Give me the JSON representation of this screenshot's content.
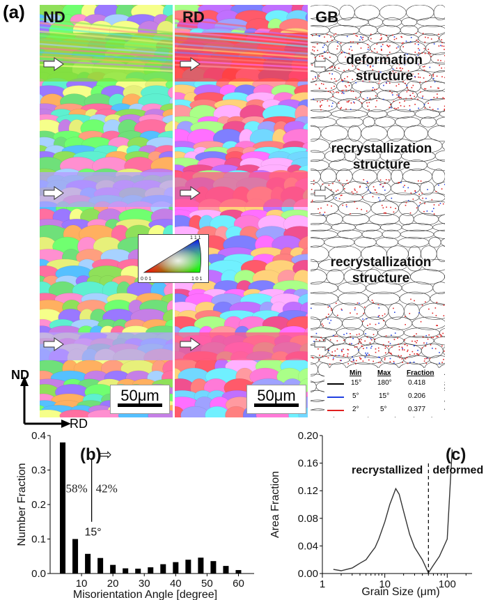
{
  "figure": {
    "panel_labels": {
      "a": "(a)",
      "b": "(b)",
      "c": "(c)"
    },
    "maps": [
      {
        "title": "ND",
        "colors": [
          "#8fe05a",
          "#6fe07a",
          "#c57fe6",
          "#ff9f7f",
          "#a7d2ff",
          "#f6ff8a",
          "#5ef0d0",
          "#ff6fa0",
          "#9a78ff",
          "#e7f07a",
          "#55c0ff",
          "#ff8fd0",
          "#70ff70",
          "#ffb060"
        ]
      },
      {
        "title": "RD",
        "colors": [
          "#ff5a6a",
          "#f0508f",
          "#ff6fff",
          "#c070ff",
          "#9fa2ff",
          "#ff9aa0",
          "#72d8ff",
          "#ffd27a",
          "#aaff88",
          "#ff7ad8",
          "#7f7fff",
          "#ffb0ff",
          "#70f0ff",
          "#ff8080"
        ]
      },
      {
        "title": "GB"
      }
    ],
    "scale_bars": [
      "50μm",
      "50μm"
    ],
    "gb_annotations": [
      "deformation",
      "structure",
      "recrystallization",
      "structure",
      "recrystallization",
      "structure"
    ],
    "ipf_key": {
      "corners": [
        "0 0 1",
        "1 0 1",
        "1 1 1"
      ]
    },
    "gb_legend": {
      "headers": [
        "Min",
        "Max",
        "Fraction"
      ],
      "rows": [
        {
          "min": "15°",
          "max": "180°",
          "fraction": "0.418",
          "color": "#000000"
        },
        {
          "min": "5°",
          "max": "15°",
          "fraction": "0.206",
          "color": "#1f3fe0"
        },
        {
          "min": "2°",
          "max": "5°",
          "fraction": "0.377",
          "color": "#e01f1f"
        }
      ]
    },
    "direction_axes": {
      "vertical": "ND",
      "horizontal": "RD"
    }
  },
  "chart_data": [
    {
      "type": "bar",
      "x": [
        4,
        8,
        12,
        16,
        20,
        24,
        28,
        32,
        36,
        40,
        44,
        48,
        52,
        56,
        60
      ],
      "values": [
        0.38,
        0.1,
        0.057,
        0.045,
        0.025,
        0.015,
        0.014,
        0.018,
        0.027,
        0.033,
        0.04,
        0.046,
        0.036,
        0.022,
        0.01
      ],
      "xlabel": "Misorientation Angle [degree]",
      "ylabel": "Number Fraction",
      "xlim": [
        0,
        65
      ],
      "ylim": [
        0,
        0.4
      ],
      "xticks": [
        10,
        20,
        30,
        40,
        50,
        60
      ],
      "yticks": [
        0.0,
        0.1,
        0.2,
        0.3,
        0.4
      ],
      "ytick_labels": [
        "0.0",
        "0.1",
        "0.2",
        "0.3",
        "0.4"
      ],
      "annotations": {
        "left_fraction": "58%",
        "right_fraction": "42%",
        "threshold": "15°",
        "arrow": "⇨"
      }
    },
    {
      "type": "line",
      "x": [
        1.5,
        2,
        3,
        4,
        5,
        6,
        7,
        8,
        10,
        12,
        15,
        17,
        20,
        25,
        30,
        40,
        50,
        60,
        75,
        100,
        120
      ],
      "values": [
        0.006,
        0.004,
        0.008,
        0.015,
        0.02,
        0.03,
        0.038,
        0.05,
        0.075,
        0.1,
        0.123,
        0.115,
        0.09,
        0.057,
        0.038,
        0.02,
        0.001,
        0.012,
        0.025,
        0.05,
        0.18
      ],
      "xlabel": "Grain Size (μm)",
      "ylabel": "Area Fraction",
      "xscale": "log",
      "xlim": [
        1,
        250
      ],
      "ylim": [
        0,
        0.2
      ],
      "xticks": [
        1,
        10,
        100
      ],
      "yticks": [
        0.0,
        0.04,
        0.08,
        0.12,
        0.16,
        0.2
      ],
      "ytick_labels": [
        "0.00",
        "0.04",
        "0.08",
        "0.12",
        "0.16",
        "0.20"
      ],
      "divider_x": 50,
      "region_labels": [
        "recrystallized",
        "deformed"
      ]
    }
  ]
}
